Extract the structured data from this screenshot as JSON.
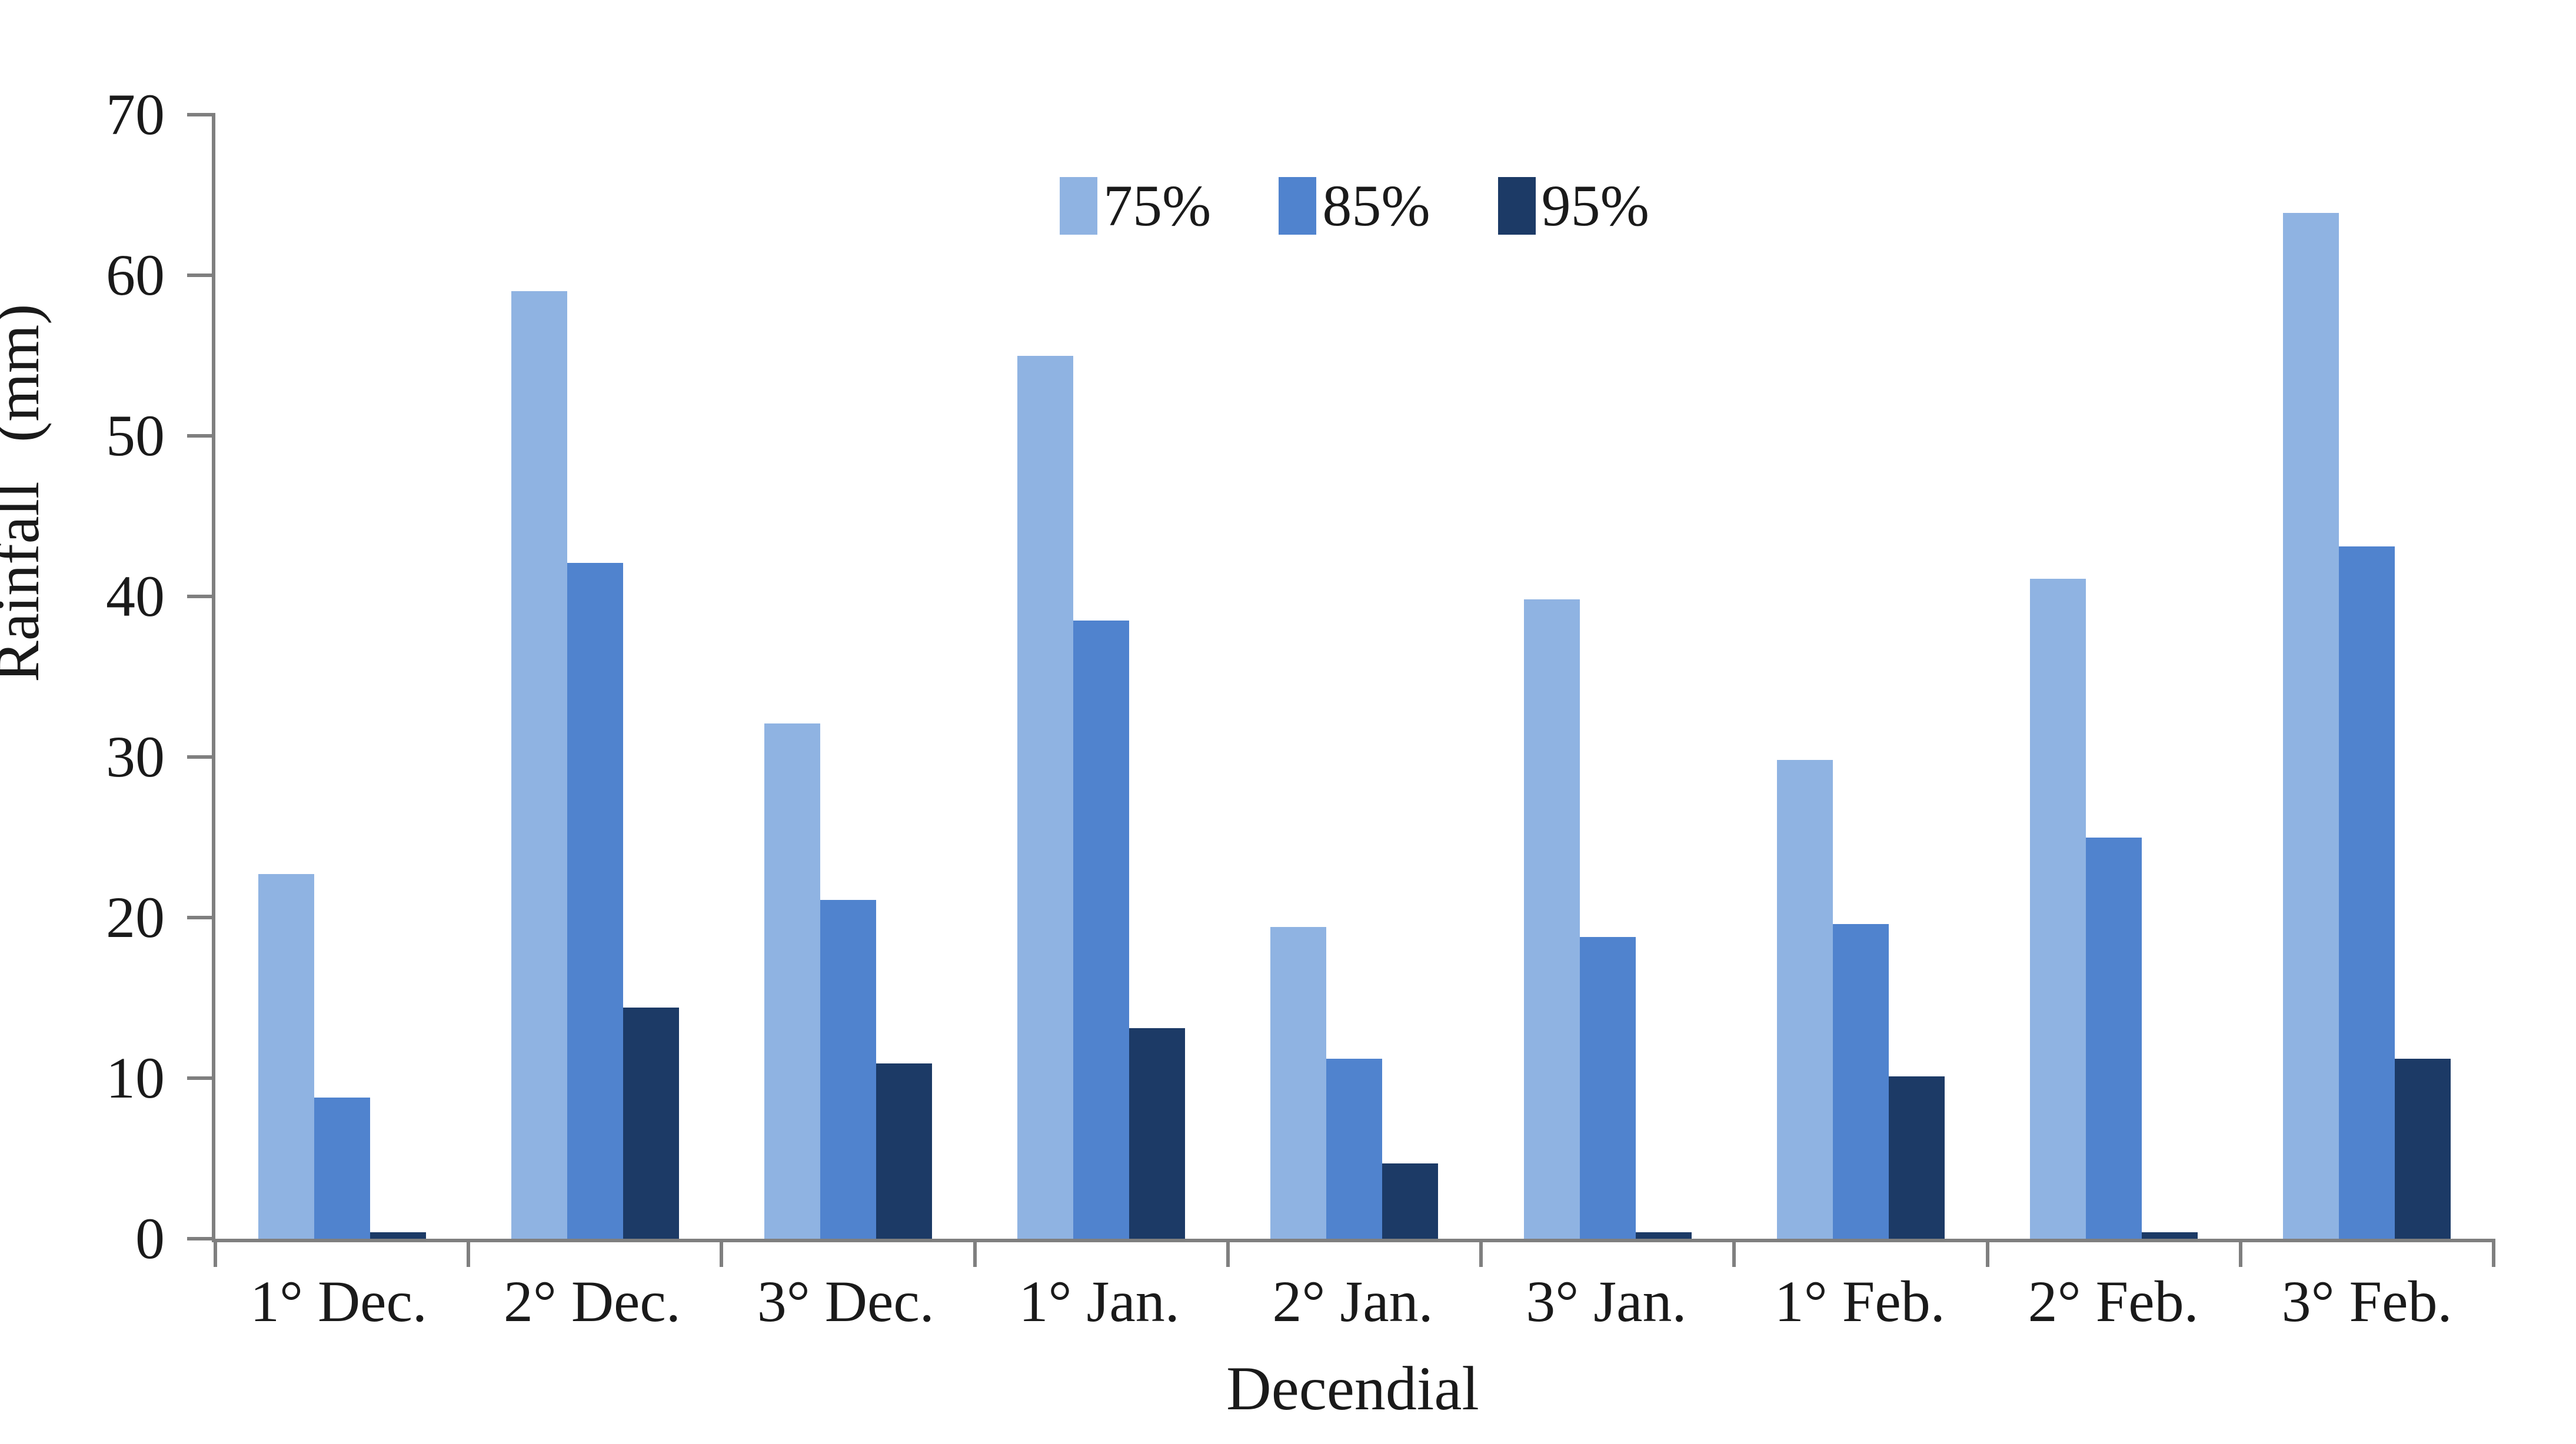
{
  "figure": {
    "background": "#ffffff",
    "text_color": "#1a1a1a",
    "axis_color": "#7f7f7f"
  },
  "chart_data": {
    "type": "bar",
    "title": "",
    "xlabel": "Decendial",
    "ylabel": "Rainfall (mm)",
    "categories": [
      "1° Dec.",
      "2° Dec.",
      "3° Dec.",
      "1° Jan.",
      "2° Jan.",
      "3° Jan.",
      "1° Feb.",
      "2° Feb.",
      "3° Feb."
    ],
    "series": [
      {
        "name": "75%",
        "color": "#8FB3E2",
        "values": [
          22.7,
          59.0,
          32.1,
          55.0,
          19.4,
          39.8,
          29.8,
          41.1,
          63.9
        ]
      },
      {
        "name": "85%",
        "color": "#5083CE",
        "values": [
          8.8,
          42.1,
          21.1,
          38.5,
          11.2,
          18.8,
          19.6,
          25.0,
          43.1
        ]
      },
      {
        "name": "95%",
        "color": "#1C3A66",
        "values": [
          0.4,
          14.4,
          10.9,
          13.1,
          4.7,
          0.4,
          10.1,
          0.4,
          11.2
        ]
      }
    ],
    "ylim": [
      0,
      70
    ],
    "yticks": [
      0,
      10,
      20,
      30,
      40,
      50,
      60,
      70
    ],
    "grid": false,
    "legend_position": "top-center"
  }
}
